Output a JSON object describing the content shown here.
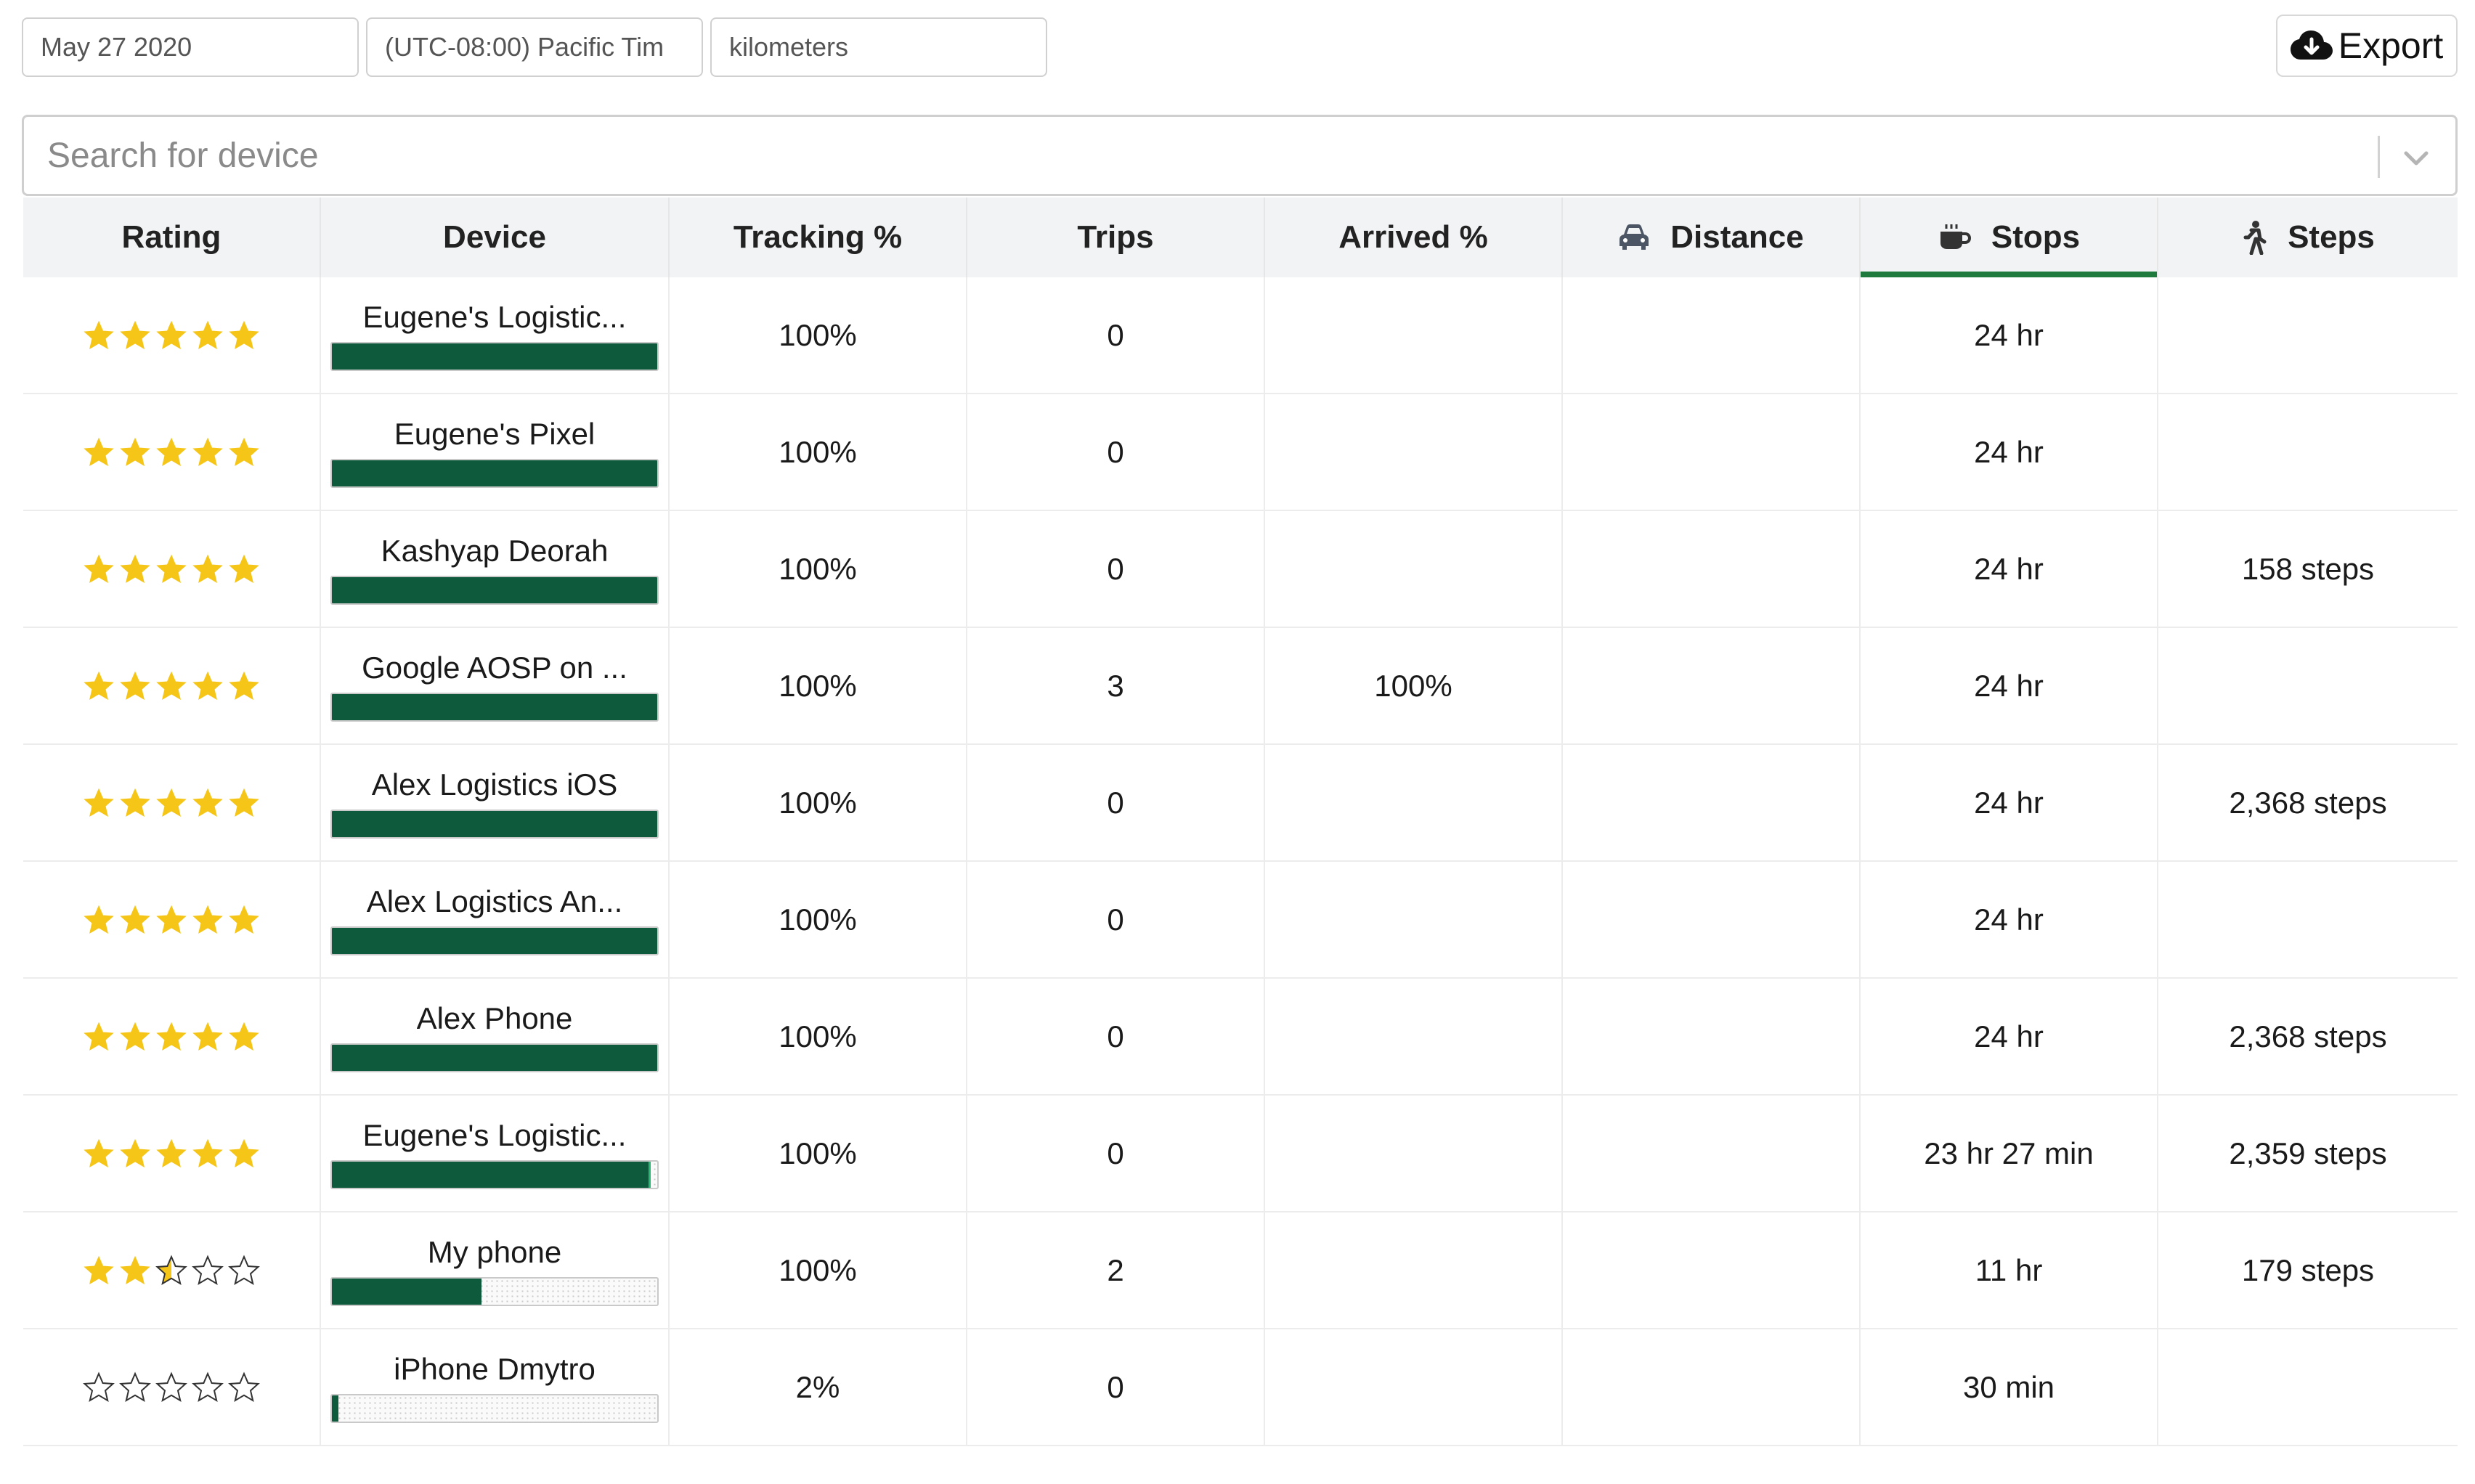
{
  "filters": {
    "date": "May 27 2020",
    "timezone": "(UTC-08:00) Pacific Tim",
    "units": "kilometers"
  },
  "export": {
    "label": "Export",
    "icon": "cloud-download-icon"
  },
  "search": {
    "placeholder": "Search for device",
    "icon": "chevron-down-icon"
  },
  "colors": {
    "accent": "#1f7a3e",
    "bar": "#0e5a3c",
    "star": "#f5c518",
    "header_bg": "#f2f3f5"
  },
  "table": {
    "headers": [
      {
        "label": "Rating",
        "icon": ""
      },
      {
        "label": "Device",
        "icon": ""
      },
      {
        "label": "Tracking %",
        "icon": ""
      },
      {
        "label": "Trips",
        "icon": ""
      },
      {
        "label": "Arrived %",
        "icon": ""
      },
      {
        "label": "Distance",
        "icon": "car-icon"
      },
      {
        "label": "Stops",
        "icon": "coffee-icon"
      },
      {
        "label": "Steps",
        "icon": "walking-icon"
      }
    ],
    "sorted_column": "Stops",
    "rows": [
      {
        "rating": 5,
        "device": "Eugene's Logistic...",
        "progress": 1.0,
        "tracking": "100%",
        "trips": "0",
        "arrived": "",
        "distance": "",
        "stops": "24 hr",
        "steps": ""
      },
      {
        "rating": 5,
        "device": "Eugene's Pixel",
        "progress": 1.0,
        "tracking": "100%",
        "trips": "0",
        "arrived": "",
        "distance": "",
        "stops": "24 hr",
        "steps": ""
      },
      {
        "rating": 5,
        "device": "Kashyap Deorah",
        "progress": 1.0,
        "tracking": "100%",
        "trips": "0",
        "arrived": "",
        "distance": "",
        "stops": "24 hr",
        "steps": "158 steps"
      },
      {
        "rating": 5,
        "device": "Google AOSP on ...",
        "progress": 1.0,
        "tracking": "100%",
        "trips": "3",
        "arrived": "100%",
        "distance": "",
        "stops": "24 hr",
        "steps": ""
      },
      {
        "rating": 5,
        "device": "Alex Logistics iOS",
        "progress": 1.0,
        "tracking": "100%",
        "trips": "0",
        "arrived": "",
        "distance": "",
        "stops": "24 hr",
        "steps": "2,368 steps"
      },
      {
        "rating": 5,
        "device": "Alex Logistics An...",
        "progress": 1.0,
        "tracking": "100%",
        "trips": "0",
        "arrived": "",
        "distance": "",
        "stops": "24 hr",
        "steps": ""
      },
      {
        "rating": 5,
        "device": "Alex Phone",
        "progress": 1.0,
        "tracking": "100%",
        "trips": "0",
        "arrived": "",
        "distance": "",
        "stops": "24 hr",
        "steps": "2,368 steps"
      },
      {
        "rating": 5,
        "device": "Eugene's Logistic...",
        "progress": 0.98,
        "tracking": "100%",
        "trips": "0",
        "arrived": "",
        "distance": "",
        "stops": "23 hr 27 min",
        "steps": "2,359 steps"
      },
      {
        "rating": 2.5,
        "device": "My phone",
        "progress": 0.46,
        "tracking": "100%",
        "trips": "2",
        "arrived": "",
        "distance": "",
        "stops": "11 hr",
        "steps": "179 steps"
      },
      {
        "rating": 0,
        "device": "iPhone Dmytro",
        "progress": 0.02,
        "tracking": "2%",
        "trips": "0",
        "arrived": "",
        "distance": "",
        "stops": "30 min",
        "steps": ""
      }
    ]
  }
}
